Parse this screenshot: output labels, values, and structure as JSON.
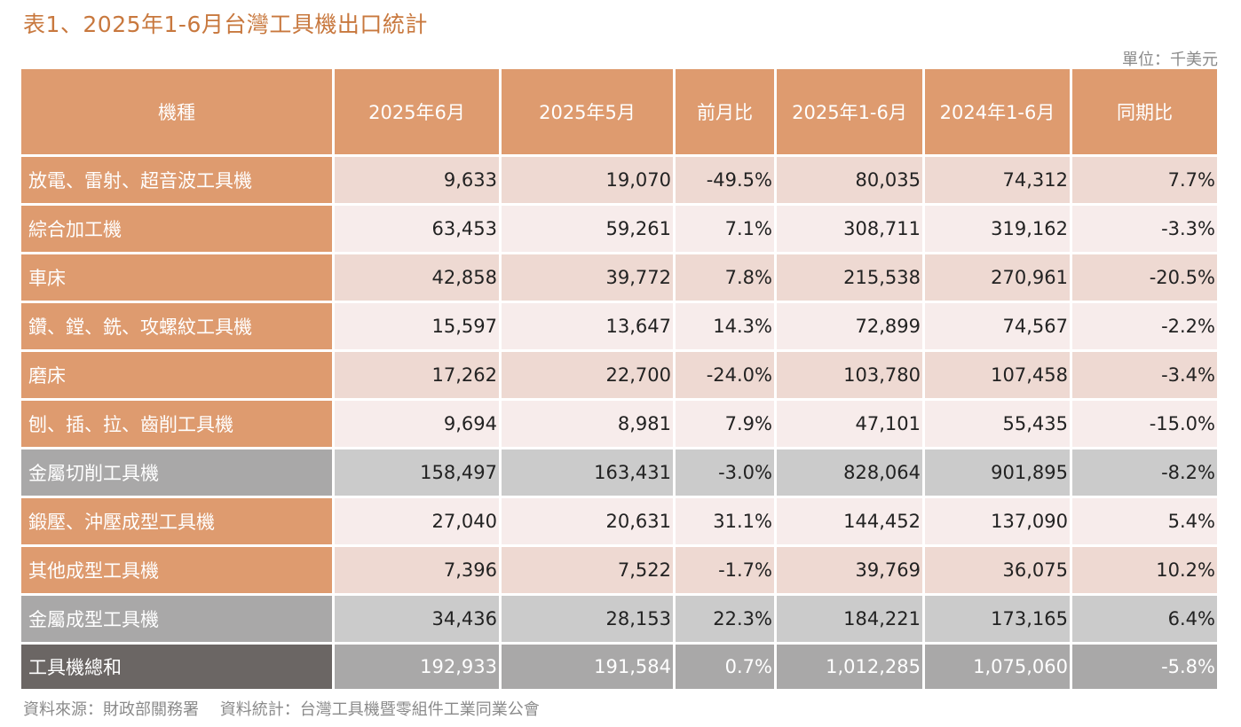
{
  "title": "表1、2025年1-6月台灣工具機出口統計",
  "unit": "單位：千美元",
  "headers": [
    "機種",
    "2025年6月",
    "2025年5月",
    "前月比",
    "2025年1-6月",
    "2024年1-6月",
    "同期比"
  ],
  "rows": [
    {
      "name": "放電、雷射、超音波工具機",
      "v": [
        "9,633",
        "19,070",
        "-49.5%",
        "80,035",
        "74,312",
        "7.7%"
      ]
    },
    {
      "name": "綜合加工機",
      "v": [
        "63,453",
        "59,261",
        "7.1%",
        "308,711",
        "319,162",
        "-3.3%"
      ]
    },
    {
      "name": "車床",
      "v": [
        "42,858",
        "39,772",
        "7.8%",
        "215,538",
        "270,961",
        "-20.5%"
      ]
    },
    {
      "name": "鑽、鏜、銑、攻螺紋工具機",
      "v": [
        "15,597",
        "13,647",
        "14.3%",
        "72,899",
        "74,567",
        "-2.2%"
      ]
    },
    {
      "name": "磨床",
      "v": [
        "17,262",
        "22,700",
        "-24.0%",
        "103,780",
        "107,458",
        "-3.4%"
      ]
    },
    {
      "name": "刨、插、拉、齒削工具機",
      "v": [
        "9,694",
        "8,981",
        "7.9%",
        "47,101",
        "55,435",
        "-15.0%"
      ]
    },
    {
      "name": "金屬切削工具機",
      "v": [
        "158,497",
        "163,431",
        "-3.0%",
        "828,064",
        "901,895",
        "-8.2%"
      ]
    },
    {
      "name": "鍛壓、沖壓成型工具機",
      "v": [
        "27,040",
        "20,631",
        "31.1%",
        "144,452",
        "137,090",
        "5.4%"
      ]
    },
    {
      "name": "其他成型工具機",
      "v": [
        "7,396",
        "7,522",
        "-1.7%",
        "39,769",
        "36,075",
        "10.2%"
      ]
    },
    {
      "name": "金屬成型工具機",
      "v": [
        "34,436",
        "28,153",
        "22.3%",
        "184,221",
        "173,165",
        "6.4%"
      ]
    },
    {
      "name": "工具機總和",
      "v": [
        "192,933",
        "191,584",
        "0.7%",
        "1,012,285",
        "1,075,060",
        "-5.8%"
      ]
    }
  ],
  "source": "資料來源：財政部關務署　 資料統計：台灣工具機暨零組件工業同業公會",
  "colors": {
    "header": "#de9b6f",
    "row_odd": "#eed9d2",
    "row_even": "#f7eceb",
    "subtotal": "#cbcbcb",
    "total": "#6b6664"
  }
}
